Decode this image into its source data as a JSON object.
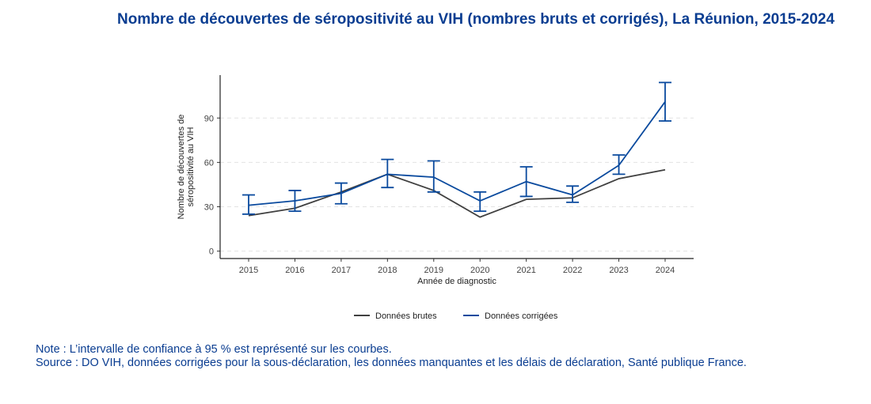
{
  "title": "Nombre de découvertes de séropositivité au VIH (nombres bruts et corrigés), La Réunion, 2015-2024",
  "note": "Note : L’intervalle de confiance à 95 % est représenté sur les courbes.",
  "source": "Source : DO VIH, données corrigées pour la sous-déclaration, les données manquantes et les délais de déclaration, Santé publique France.",
  "chart_data": {
    "type": "line",
    "title": "Nombre de découvertes de séropositivité au VIH (nombres bruts et corrigés), La Réunion, 2015-2024",
    "xlabel": "Année de diagnostic",
    "ylabel": "Nombre de découvertes de séropositivité au VIH",
    "x": [
      2015,
      2016,
      2017,
      2018,
      2019,
      2020,
      2021,
      2022,
      2023,
      2024
    ],
    "yticks": [
      0,
      30,
      60,
      90
    ],
    "ylim": [
      -5,
      119
    ],
    "grid": true,
    "legend_position": "bottom",
    "series": [
      {
        "name": "Données brutes",
        "color": "#404040",
        "values": [
          24,
          29,
          40,
          52,
          41,
          23,
          35,
          36,
          49,
          55
        ]
      },
      {
        "name": "Données corrigées",
        "color": "#0a4a9e",
        "values": [
          31,
          34,
          39,
          52,
          50,
          34,
          47,
          38,
          58,
          101
        ],
        "ci_low": [
          25,
          27,
          32,
          43,
          40,
          27,
          37,
          33,
          52,
          88
        ],
        "ci_high": [
          38,
          41,
          46,
          62,
          61,
          40,
          57,
          44,
          65,
          114
        ]
      }
    ]
  }
}
